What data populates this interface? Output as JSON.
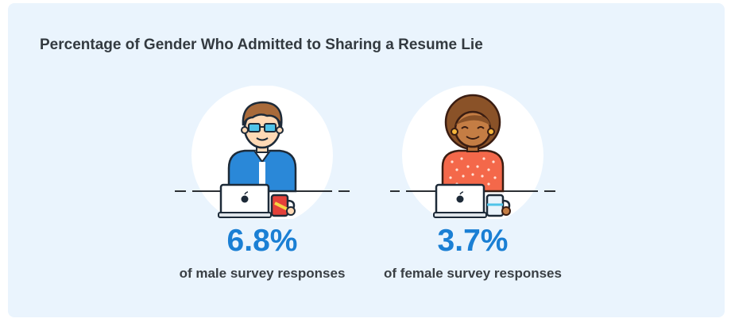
{
  "chart_data": {
    "type": "pictogram",
    "title": "Percentage of Gender Who Admitted to Sharing a Resume Lie",
    "categories": [
      "male",
      "female"
    ],
    "values": [
      6.8,
      3.7
    ],
    "unit": "%",
    "items": [
      {
        "value": "6.8%",
        "caption": "of male survey responses"
      },
      {
        "value": "3.7%",
        "caption": "of female survey responses"
      }
    ]
  },
  "colors": {
    "card_background": "#eaf4fd",
    "value_text": "#1a7fd4",
    "male_shirt": "#2a88d8",
    "male_mug": "#e4413a",
    "female_shirt": "#f4684a",
    "female_hair": "#8a5228",
    "female_mug": "#e9f3fb"
  },
  "icons": {
    "male": "man-at-laptop-icon",
    "female": "woman-at-laptop-icon"
  }
}
